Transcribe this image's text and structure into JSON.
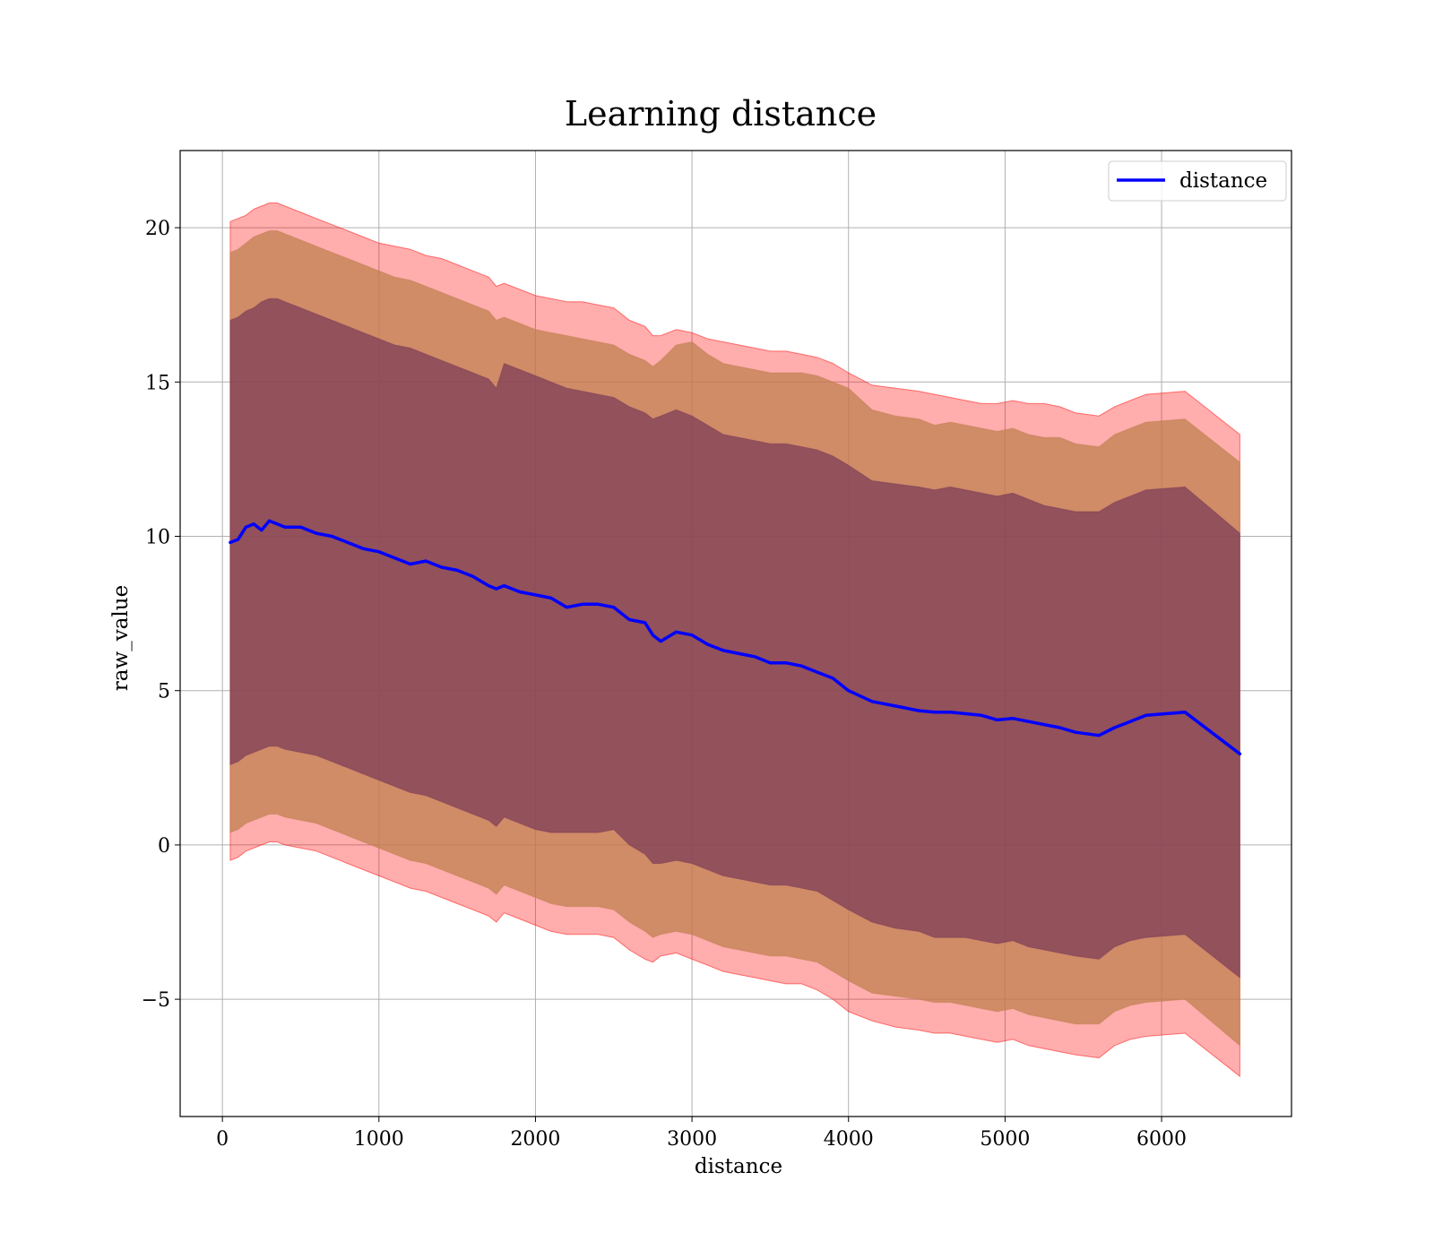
{
  "chart_data": {
    "type": "line",
    "title": "Learning distance",
    "xlabel": "distance",
    "ylabel": "raw_value",
    "xlim": [
      -270,
      6830
    ],
    "ylim": [
      -8.8,
      22.5
    ],
    "xticks": [
      0,
      1000,
      2000,
      3000,
      4000,
      5000,
      6000
    ],
    "xtick_labels": [
      "0",
      "1000",
      "2000",
      "3000",
      "4000",
      "5000",
      "6000"
    ],
    "yticks": [
      -5,
      0,
      5,
      10,
      15,
      20
    ],
    "ytick_labels": [
      "−5",
      "0",
      "5",
      "10",
      "15",
      "20"
    ],
    "grid": true,
    "legend": {
      "position": "top-right"
    },
    "colors": {
      "line": "#0000ff",
      "band_outer": "#ff0000",
      "band_middle": "#c08050",
      "band_inner": "#7a3a58"
    },
    "x": [
      50,
      100,
      150,
      200,
      250,
      300,
      350,
      400,
      500,
      600,
      700,
      800,
      900,
      1000,
      1100,
      1200,
      1300,
      1400,
      1500,
      1600,
      1700,
      1750,
      1800,
      1900,
      2000,
      2100,
      2200,
      2300,
      2400,
      2500,
      2600,
      2700,
      2750,
      2800,
      2900,
      3000,
      3100,
      3200,
      3300,
      3400,
      3500,
      3600,
      3700,
      3800,
      3900,
      4000,
      4150,
      4300,
      4450,
      4550,
      4650,
      4750,
      4850,
      4950,
      5050,
      5150,
      5250,
      5350,
      5450,
      5600,
      5700,
      5800,
      5900,
      6150,
      6500
    ],
    "series": [
      {
        "name": "distance",
        "values": [
          9.8,
          9.9,
          10.3,
          10.4,
          10.2,
          10.5,
          10.4,
          10.3,
          10.3,
          10.1,
          10.0,
          9.8,
          9.6,
          9.5,
          9.3,
          9.1,
          9.2,
          9.0,
          8.9,
          8.7,
          8.4,
          8.3,
          8.4,
          8.2,
          8.1,
          8.0,
          7.7,
          7.8,
          7.8,
          7.7,
          7.3,
          7.2,
          6.8,
          6.6,
          6.9,
          6.8,
          6.5,
          6.3,
          6.2,
          6.1,
          5.9,
          5.9,
          5.8,
          5.6,
          5.4,
          5.0,
          4.65,
          4.5,
          4.35,
          4.3,
          4.3,
          4.25,
          4.2,
          4.05,
          4.1,
          4.0,
          3.9,
          3.8,
          3.65,
          3.55,
          3.8,
          4.0,
          4.2,
          4.3,
          2.95
        ]
      }
    ],
    "bands": {
      "outer_upper": [
        20.2,
        20.3,
        20.4,
        20.6,
        20.7,
        20.8,
        20.8,
        20.7,
        20.5,
        20.3,
        20.1,
        19.9,
        19.7,
        19.5,
        19.4,
        19.3,
        19.1,
        19.0,
        18.8,
        18.6,
        18.4,
        18.1,
        18.2,
        18.0,
        17.8,
        17.7,
        17.6,
        17.6,
        17.5,
        17.4,
        17.0,
        16.8,
        16.5,
        16.5,
        16.7,
        16.6,
        16.4,
        16.3,
        16.2,
        16.1,
        16.0,
        16.0,
        15.9,
        15.8,
        15.6,
        15.3,
        14.9,
        14.8,
        14.7,
        14.6,
        14.5,
        14.4,
        14.3,
        14.3,
        14.4,
        14.3,
        14.3,
        14.2,
        14.0,
        13.9,
        14.2,
        14.4,
        14.6,
        14.7,
        13.3
      ],
      "middle_upper": [
        19.2,
        19.3,
        19.5,
        19.7,
        19.8,
        19.9,
        19.9,
        19.8,
        19.6,
        19.4,
        19.2,
        19.0,
        18.8,
        18.6,
        18.4,
        18.3,
        18.1,
        17.9,
        17.7,
        17.5,
        17.3,
        17.0,
        17.1,
        16.9,
        16.7,
        16.6,
        16.5,
        16.4,
        16.3,
        16.2,
        15.9,
        15.7,
        15.5,
        15.7,
        16.2,
        16.3,
        15.9,
        15.6,
        15.5,
        15.4,
        15.3,
        15.3,
        15.3,
        15.2,
        15.0,
        14.8,
        14.1,
        13.9,
        13.8,
        13.6,
        13.7,
        13.6,
        13.5,
        13.4,
        13.5,
        13.3,
        13.2,
        13.2,
        13.0,
        12.9,
        13.3,
        13.5,
        13.7,
        13.8,
        12.4
      ],
      "inner_upper": [
        17.0,
        17.1,
        17.3,
        17.4,
        17.6,
        17.7,
        17.7,
        17.6,
        17.4,
        17.2,
        17.0,
        16.8,
        16.6,
        16.4,
        16.2,
        16.1,
        15.9,
        15.7,
        15.5,
        15.3,
        15.1,
        14.8,
        15.6,
        15.4,
        15.2,
        15.0,
        14.8,
        14.7,
        14.6,
        14.5,
        14.2,
        14.0,
        13.8,
        13.9,
        14.1,
        13.9,
        13.6,
        13.3,
        13.2,
        13.1,
        13.0,
        13.0,
        12.9,
        12.8,
        12.6,
        12.3,
        11.8,
        11.7,
        11.6,
        11.5,
        11.6,
        11.5,
        11.4,
        11.3,
        11.4,
        11.2,
        11.0,
        10.9,
        10.8,
        10.8,
        11.1,
        11.3,
        11.5,
        11.6,
        10.1
      ],
      "inner_lower": [
        2.6,
        2.7,
        2.9,
        3.0,
        3.1,
        3.2,
        3.2,
        3.1,
        3.0,
        2.9,
        2.7,
        2.5,
        2.3,
        2.1,
        1.9,
        1.7,
        1.6,
        1.4,
        1.2,
        1.0,
        0.8,
        0.6,
        0.9,
        0.7,
        0.5,
        0.4,
        0.4,
        0.4,
        0.4,
        0.5,
        0.0,
        -0.3,
        -0.6,
        -0.6,
        -0.5,
        -0.6,
        -0.8,
        -1.0,
        -1.1,
        -1.2,
        -1.3,
        -1.3,
        -1.4,
        -1.5,
        -1.8,
        -2.1,
        -2.5,
        -2.7,
        -2.8,
        -3.0,
        -3.0,
        -3.0,
        -3.1,
        -3.2,
        -3.1,
        -3.3,
        -3.4,
        -3.5,
        -3.6,
        -3.7,
        -3.3,
        -3.1,
        -3.0,
        -2.9,
        -4.3
      ],
      "middle_lower": [
        0.4,
        0.5,
        0.7,
        0.8,
        0.9,
        1.0,
        1.0,
        0.9,
        0.8,
        0.7,
        0.5,
        0.3,
        0.1,
        -0.1,
        -0.3,
        -0.5,
        -0.6,
        -0.8,
        -1.0,
        -1.2,
        -1.4,
        -1.6,
        -1.3,
        -1.5,
        -1.7,
        -1.9,
        -2.0,
        -2.0,
        -2.0,
        -2.1,
        -2.5,
        -2.8,
        -3.0,
        -2.9,
        -2.8,
        -2.9,
        -3.1,
        -3.3,
        -3.4,
        -3.5,
        -3.6,
        -3.6,
        -3.7,
        -3.8,
        -4.1,
        -4.4,
        -4.8,
        -4.9,
        -5.0,
        -5.1,
        -5.1,
        -5.2,
        -5.3,
        -5.4,
        -5.3,
        -5.5,
        -5.6,
        -5.7,
        -5.8,
        -5.8,
        -5.4,
        -5.2,
        -5.1,
        -5.0,
        -6.5
      ],
      "outer_lower": [
        -0.5,
        -0.4,
        -0.2,
        -0.1,
        0.0,
        0.1,
        0.1,
        0.0,
        -0.1,
        -0.2,
        -0.4,
        -0.6,
        -0.8,
        -1.0,
        -1.2,
        -1.4,
        -1.5,
        -1.7,
        -1.9,
        -2.1,
        -2.3,
        -2.5,
        -2.2,
        -2.4,
        -2.6,
        -2.8,
        -2.9,
        -2.9,
        -2.9,
        -3.0,
        -3.4,
        -3.7,
        -3.8,
        -3.6,
        -3.5,
        -3.7,
        -3.9,
        -4.1,
        -4.2,
        -4.3,
        -4.4,
        -4.5,
        -4.5,
        -4.7,
        -5.0,
        -5.4,
        -5.7,
        -5.9,
        -6.0,
        -6.1,
        -6.1,
        -6.2,
        -6.3,
        -6.4,
        -6.3,
        -6.5,
        -6.6,
        -6.7,
        -6.8,
        -6.9,
        -6.5,
        -6.3,
        -6.2,
        -6.1,
        -7.5
      ]
    }
  }
}
